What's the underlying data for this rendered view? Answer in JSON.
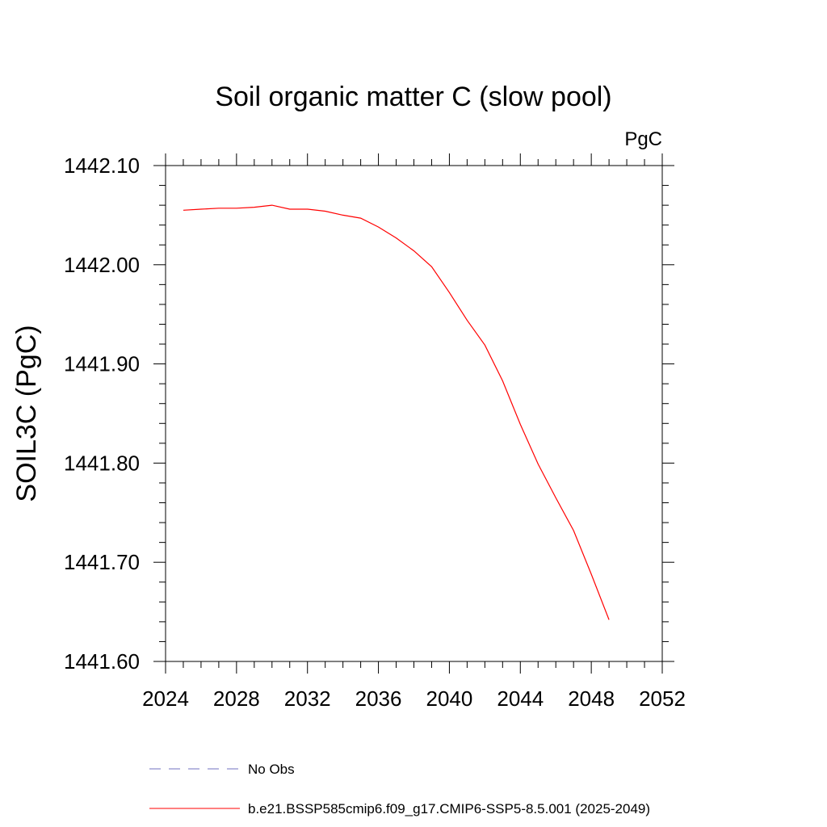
{
  "chart_data": {
    "type": "line",
    "title": "Soil organic matter C (slow pool)",
    "units": "PgC",
    "ylabel": "SOIL3C  (PgC)",
    "xlim": [
      2024,
      2052
    ],
    "ylim": [
      1441.6,
      1442.1
    ],
    "x_ticks": [
      2024,
      2028,
      2032,
      2036,
      2040,
      2044,
      2048,
      2052
    ],
    "x_tick_labels": [
      "2024",
      "2028",
      "2032",
      "2036",
      "2040",
      "2044",
      "2048",
      "2052"
    ],
    "y_ticks": [
      1441.6,
      1441.7,
      1441.8,
      1441.9,
      1442.0,
      1442.1
    ],
    "y_tick_labels": [
      "1441.60",
      "1441.70",
      "1441.80",
      "1441.90",
      "1442.00",
      "1442.10"
    ],
    "x_minor_step": 1,
    "y_minor_step": 0.02,
    "grid": false,
    "legend_position": "bottom",
    "series": [
      {
        "name": "b.e21.BSSP585cmip6.f09_g17.CMIP6-SSP5-8.5.001 (2025-2049)",
        "color": "#ff0000",
        "style": "solid",
        "x": [
          2025,
          2026,
          2027,
          2028,
          2029,
          2030,
          2031,
          2032,
          2033,
          2034,
          2035,
          2036,
          2037,
          2038,
          2039,
          2040,
          2041,
          2042,
          2043,
          2044,
          2045,
          2046,
          2047,
          2048,
          2049
        ],
        "y": [
          1442.055,
          1442.056,
          1442.057,
          1442.057,
          1442.058,
          1442.06,
          1442.056,
          1442.056,
          1442.054,
          1442.05,
          1442.047,
          1442.038,
          1442.027,
          1442.014,
          1441.998,
          1441.972,
          1441.944,
          1441.919,
          1441.883,
          1441.839,
          1441.799,
          1441.765,
          1441.732,
          1441.688,
          1441.642
        ]
      }
    ],
    "legend": [
      {
        "label": "No Obs",
        "color": "#7070c0",
        "style": "dashed"
      },
      {
        "label": "b.e21.BSSP585cmip6.f09_g17.CMIP6-SSP5-8.5.001 (2025-2049)",
        "color": "#ff0000",
        "style": "solid"
      }
    ]
  }
}
